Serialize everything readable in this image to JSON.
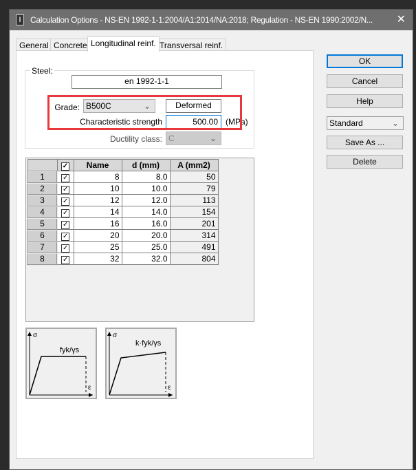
{
  "window": {
    "title": "Calculation Options - NS-EN 1992-1-1:2004/A1:2014/NA:2018;   Regulation - NS-EN 1990:2002/N...",
    "close": "✕"
  },
  "tabs": [
    {
      "label": "General"
    },
    {
      "label": "Concrete"
    },
    {
      "label": "Longitudinal reinf.",
      "active": true
    },
    {
      "label": "Transversal reinf."
    }
  ],
  "steel": {
    "legend": "Steel:",
    "standard": "en 1992-1-1",
    "grade_label": "Grade:",
    "grade": "B500C",
    "surface": "Deformed",
    "strength_label": "Characteristic strength",
    "strength": "500.00",
    "unit": "(MPa)",
    "ductility_label": "Ductility class:",
    "ductility": "C",
    "highlight_color": "#e8383d"
  },
  "table": {
    "headers": [
      "Name",
      "d (mm)",
      "A (mm2)"
    ],
    "rows": [
      [
        "1",
        "8",
        "8.0",
        "50"
      ],
      [
        "2",
        "10",
        "10.0",
        "79"
      ],
      [
        "3",
        "12",
        "12.0",
        "113"
      ],
      [
        "4",
        "14",
        "14.0",
        "154"
      ],
      [
        "5",
        "16",
        "16.0",
        "201"
      ],
      [
        "6",
        "20",
        "20.0",
        "314"
      ],
      [
        "7",
        "25",
        "25.0",
        "491"
      ],
      [
        "8",
        "32",
        "32.0",
        "804"
      ]
    ]
  },
  "diagrams": [
    {
      "label": "fyk/γs",
      "sigma": "σ",
      "eps": "ε"
    },
    {
      "label": "k·fyk/γs",
      "sigma": "σ",
      "eps": "ε"
    }
  ],
  "buttons": {
    "ok": "OK",
    "cancel": "Cancel",
    "help": "Help",
    "preset": "Standard",
    "save_as": "Save As ...",
    "delete": "Delete"
  }
}
